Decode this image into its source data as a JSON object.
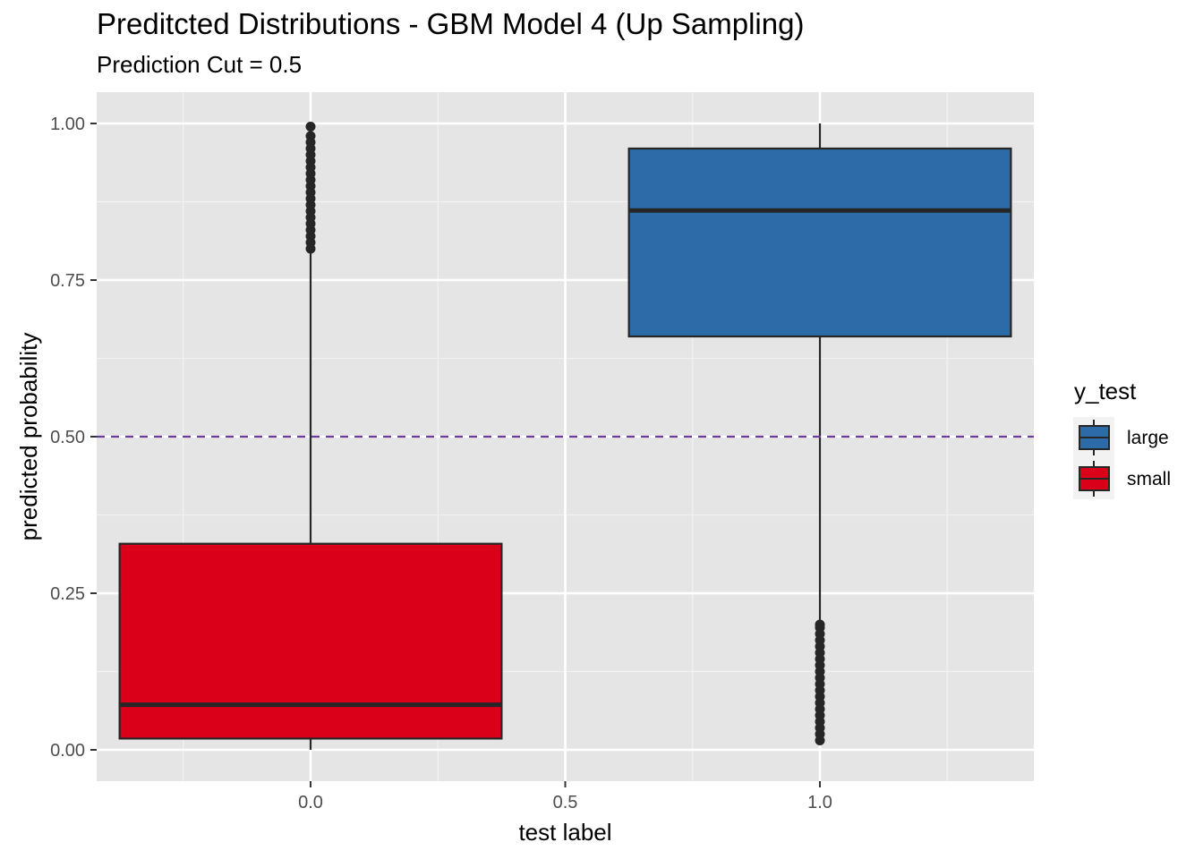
{
  "chart_data": {
    "type": "boxplot",
    "title": "Preditcted Distributions - GBM Model 4 (Up Sampling)",
    "subtitle": "Prediction Cut = 0.5",
    "xlabel": "test label",
    "ylabel": "predicted probability",
    "xlim": [
      -0.42,
      1.42
    ],
    "ylim": [
      -0.05,
      1.05
    ],
    "x_ticks": [
      0.0,
      0.5,
      1.0
    ],
    "x_tick_labels": [
      "0.0",
      "0.5",
      "1.0"
    ],
    "y_ticks": [
      0.0,
      0.25,
      0.5,
      0.75,
      1.0
    ],
    "y_tick_labels": [
      "0.00",
      "0.25",
      "0.50",
      "0.75",
      "1.00"
    ],
    "grid": true,
    "panel_background": "#E5E5E5",
    "cutoff_line": {
      "y": 0.5,
      "style": "dashed",
      "color": "#6A3D9A"
    },
    "legend": {
      "title": "y_test",
      "position": "right",
      "entries": [
        {
          "label": "large",
          "color": "#2C6BA8"
        },
        {
          "label": "small",
          "color": "#DB0019"
        }
      ]
    },
    "boxes": [
      {
        "group": "small",
        "x": 0.0,
        "fill": "#DB0019",
        "min": 0.0,
        "q1": 0.018,
        "median": 0.072,
        "q3": 0.329,
        "whisker_high": 0.796,
        "outliers": [
          0.8,
          0.81,
          0.82,
          0.83,
          0.84,
          0.85,
          0.86,
          0.87,
          0.88,
          0.89,
          0.9,
          0.91,
          0.92,
          0.93,
          0.94,
          0.95,
          0.96,
          0.97,
          0.98,
          0.995
        ]
      },
      {
        "group": "large",
        "x": 1.0,
        "fill": "#2C6BA8",
        "min": 0.203,
        "q1": 0.66,
        "median": 0.861,
        "q3": 0.96,
        "whisker_high": 1.0,
        "outliers": [
          0.015,
          0.025,
          0.035,
          0.045,
          0.055,
          0.065,
          0.075,
          0.085,
          0.095,
          0.105,
          0.115,
          0.125,
          0.135,
          0.145,
          0.155,
          0.165,
          0.175,
          0.185,
          0.195,
          0.2
        ]
      }
    ]
  }
}
